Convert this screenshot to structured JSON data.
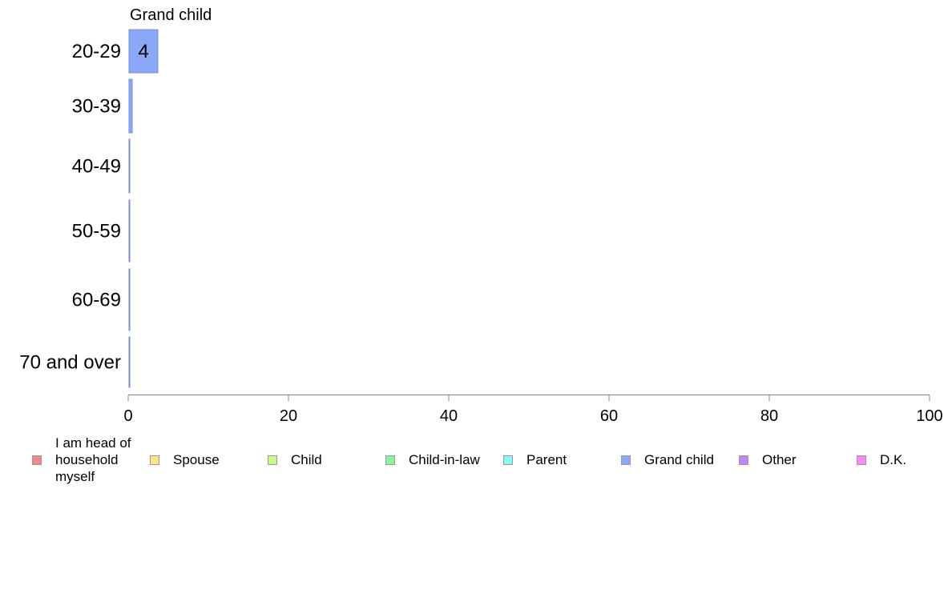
{
  "chart_data": {
    "type": "bar",
    "orientation": "horizontal",
    "title": "Grand child",
    "categories": [
      "20-29",
      "30-39",
      "40-49",
      "50-59",
      "60-69",
      "70 and over"
    ],
    "series": [
      {
        "name": "Grand child",
        "color": "#8aa8f7",
        "values": [
          3.6,
          0.4,
          0.05,
          0.05,
          0.05,
          0.05
        ],
        "labels": [
          "4",
          "",
          "",
          "",
          "",
          ""
        ]
      }
    ],
    "xlim": [
      0,
      100
    ],
    "xticks": [
      "0",
      "20",
      "40",
      "60",
      "80",
      "100"
    ],
    "xlabel": "",
    "ylabel": "",
    "grid": false,
    "legend_position": "bottom",
    "legend": [
      {
        "label": "I am head of household myself",
        "color": "#f4898a"
      },
      {
        "label": "Spouse",
        "color": "#fde58a"
      },
      {
        "label": "Child",
        "color": "#c8f98a"
      },
      {
        "label": "Child-in-law",
        "color": "#8af59e"
      },
      {
        "label": "Parent",
        "color": "#8af8f4"
      },
      {
        "label": "Grand child",
        "color": "#8aa8f7"
      },
      {
        "label": "Other",
        "color": "#b98af6"
      },
      {
        "label": "D.K.",
        "color": "#f68af0"
      }
    ]
  }
}
